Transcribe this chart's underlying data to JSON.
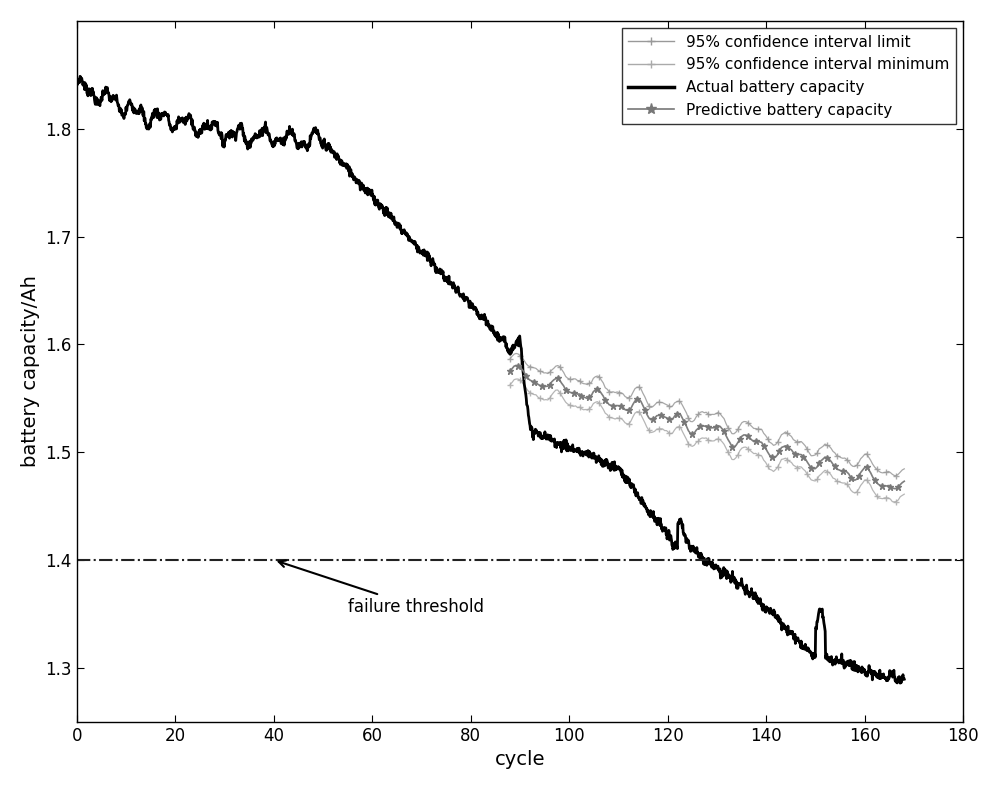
{
  "xlabel": "cycle",
  "ylabel": "battery capacity/Ah",
  "xlim": [
    0,
    180
  ],
  "ylim": [
    1.25,
    1.9
  ],
  "yticks": [
    1.3,
    1.4,
    1.5,
    1.6,
    1.7,
    1.8
  ],
  "xticks": [
    0,
    20,
    40,
    60,
    80,
    100,
    120,
    140,
    160,
    180
  ],
  "threshold": 1.4,
  "threshold_label": "failure threshold",
  "bg_color": "#ffffff",
  "actual_color": "#000000",
  "predict_color": "#777777",
  "ci_upper_color": "#999999",
  "ci_lower_color": "#aaaaaa",
  "legend_entries": [
    "95% confidence interval limit",
    "95% confidence interval minimum",
    "Actual battery capacity",
    "Predictive battery capacity"
  ]
}
